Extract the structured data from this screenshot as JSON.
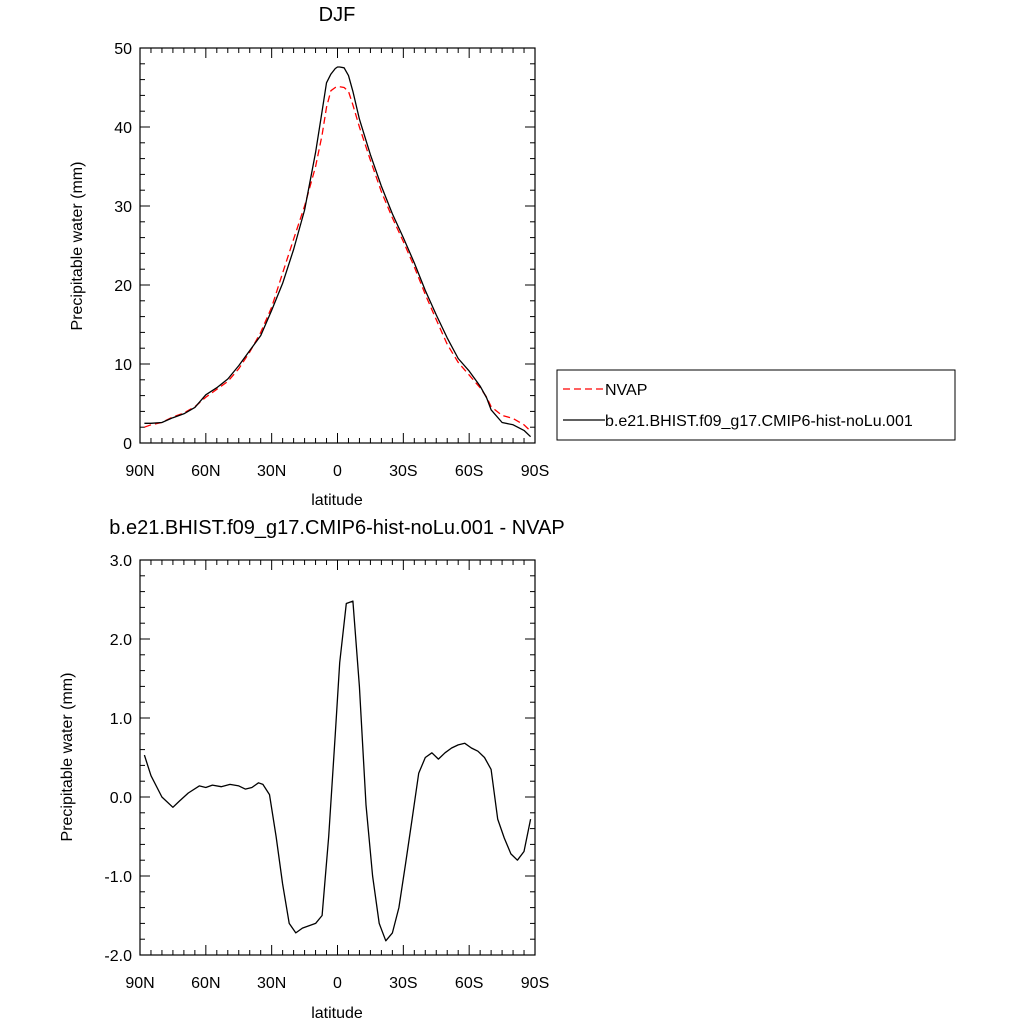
{
  "chart_data": [
    {
      "type": "line",
      "title": "DJF",
      "xlabel": "latitude",
      "ylabel": "Precipitable water (mm)",
      "xlim": [
        -90,
        90
      ],
      "ylim": [
        0,
        50
      ],
      "x_tick_labels": [
        "90N",
        "60N",
        "30N",
        "0",
        "30S",
        "60S",
        "90S"
      ],
      "y_tick_labels": [
        "0",
        "10",
        "20",
        "30",
        "40",
        "50"
      ],
      "legend": {
        "position": "right"
      },
      "series": [
        {
          "name": "NVAP",
          "color": "#ff0000",
          "style": "dashed",
          "x": [
            -88,
            -85,
            -80,
            -75,
            -70,
            -65,
            -60,
            -55,
            -50,
            -45,
            -40,
            -35,
            -30,
            -25,
            -20,
            -15,
            -10,
            -7,
            -5,
            -3,
            -1,
            0,
            1,
            3,
            5,
            7,
            10,
            15,
            20,
            25,
            30,
            35,
            40,
            45,
            50,
            55,
            60,
            65,
            68,
            70,
            75,
            80,
            85,
            88
          ],
          "y": [
            2.0,
            2.3,
            2.6,
            3.3,
            3.8,
            4.6,
            5.8,
            6.8,
            7.8,
            9.4,
            11.5,
            14.0,
            17.2,
            21.5,
            25.8,
            30.0,
            35.0,
            39.0,
            42.5,
            44.6,
            45.0,
            45.1,
            45.1,
            45.0,
            44.5,
            42.8,
            40.0,
            35.8,
            31.8,
            28.5,
            25.5,
            22.3,
            18.8,
            15.6,
            12.5,
            10.2,
            8.6,
            7.0,
            5.8,
            4.6,
            3.5,
            3.1,
            2.3,
            1.5
          ]
        },
        {
          "name": "b.e21.BHIST.f09_g17.CMIP6-hist-noLu.001",
          "color": "#000000",
          "style": "solid",
          "x": [
            -88,
            -85,
            -80,
            -75,
            -70,
            -65,
            -60,
            -55,
            -50,
            -45,
            -40,
            -35,
            -30,
            -25,
            -20,
            -15,
            -10,
            -7,
            -5,
            -3,
            -1,
            0,
            1,
            3,
            5,
            7,
            10,
            15,
            20,
            25,
            30,
            35,
            40,
            45,
            50,
            55,
            60,
            65,
            68,
            70,
            75,
            80,
            85,
            88
          ],
          "y": [
            2.5,
            2.5,
            2.6,
            3.2,
            3.7,
            4.5,
            6.1,
            7.0,
            8.1,
            9.8,
            11.7,
            13.6,
            16.8,
            20.2,
            24.5,
            29.5,
            36.8,
            42.0,
            45.6,
            46.7,
            47.4,
            47.6,
            47.6,
            47.5,
            46.5,
            44.5,
            41.0,
            36.5,
            32.5,
            29.0,
            26.0,
            22.8,
            19.3,
            16.2,
            13.3,
            10.7,
            9.1,
            7.2,
            5.7,
            4.2,
            2.6,
            2.3,
            1.6,
            0.8
          ]
        }
      ]
    },
    {
      "type": "line",
      "title": "b.e21.BHIST.f09_g17.CMIP6-hist-noLu.001 - NVAP",
      "xlabel": "latitude",
      "ylabel": "Precipitable water (mm)",
      "xlim": [
        -90,
        90
      ],
      "ylim": [
        -2.0,
        3.0
      ],
      "x_tick_labels": [
        "90N",
        "60N",
        "30N",
        "0",
        "30S",
        "60S",
        "90S"
      ],
      "y_tick_labels": [
        "-2.0",
        "-1.0",
        "0.0",
        "1.0",
        "2.0",
        "3.0"
      ],
      "series": [
        {
          "color": "#000000",
          "style": "solid",
          "x": [
            -88,
            -85,
            -80,
            -75,
            -72,
            -68,
            -63,
            -60,
            -57,
            -53,
            -49,
            -45,
            -42,
            -39,
            -36,
            -34,
            -31,
            -28,
            -25,
            -22,
            -19,
            -16,
            -13,
            -10,
            -7,
            -4,
            -1,
            1,
            4,
            7,
            10,
            13,
            16,
            19,
            22,
            25,
            28,
            31,
            34,
            37,
            40,
            43,
            46,
            49,
            52,
            55,
            58,
            61,
            64,
            67,
            70,
            73,
            76,
            79,
            82,
            85,
            88
          ],
          "y": [
            0.53,
            0.27,
            0.0,
            -0.13,
            -0.05,
            0.05,
            0.14,
            0.12,
            0.15,
            0.13,
            0.16,
            0.14,
            0.1,
            0.12,
            0.18,
            0.16,
            0.03,
            -0.5,
            -1.1,
            -1.6,
            -1.72,
            -1.66,
            -1.63,
            -1.6,
            -1.5,
            -0.5,
            0.8,
            1.7,
            2.45,
            2.48,
            1.4,
            -0.1,
            -1.0,
            -1.6,
            -1.82,
            -1.72,
            -1.4,
            -0.85,
            -0.28,
            0.3,
            0.5,
            0.56,
            0.48,
            0.56,
            0.62,
            0.66,
            0.68,
            0.62,
            0.58,
            0.5,
            0.35,
            -0.28,
            -0.52,
            -0.72,
            -0.8,
            -0.69,
            -0.28
          ]
        }
      ]
    }
  ]
}
